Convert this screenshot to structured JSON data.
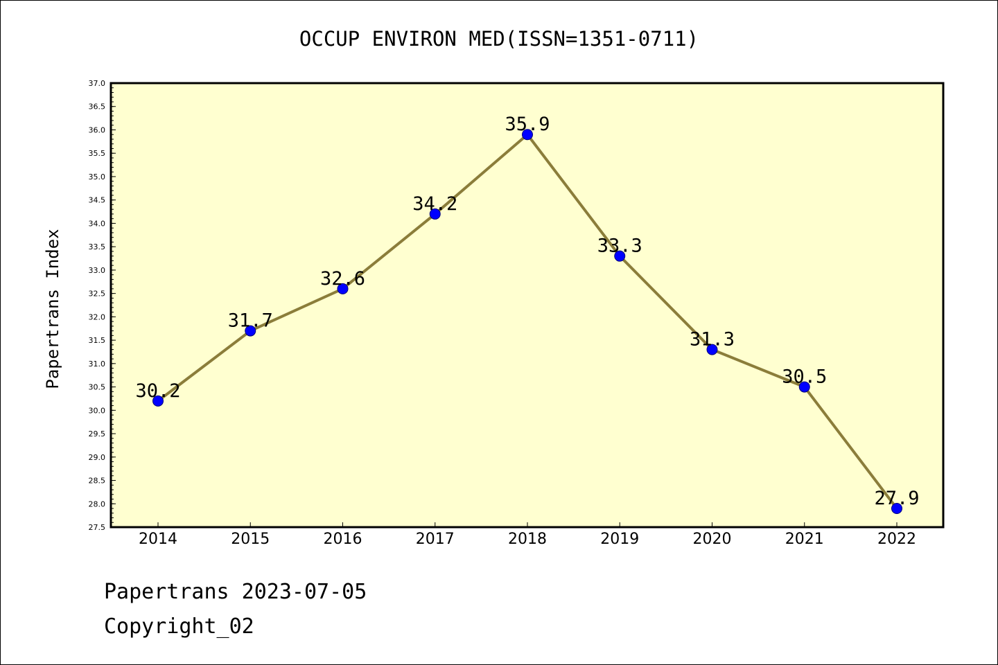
{
  "chart_data": {
    "type": "line",
    "title": "OCCUP ENVIRON MED(ISSN=1351-0711)",
    "xlabel": "",
    "ylabel": "Papertrans Index",
    "categories": [
      "2014",
      "2015",
      "2016",
      "2017",
      "2018",
      "2019",
      "2020",
      "2021",
      "2022"
    ],
    "series": [
      {
        "values": [
          30.2,
          31.7,
          32.6,
          34.2,
          35.9,
          33.3,
          31.3,
          30.5,
          27.9
        ],
        "labels": [
          "30.2",
          "31.7",
          "32.6",
          "34.2",
          "35.9",
          "33.3",
          "31.3",
          "30.5",
          "27.9"
        ]
      }
    ],
    "ylim": [
      27.5,
      37.0
    ],
    "yticks": [
      "27.5",
      "28.0",
      "28.5",
      "29.0",
      "29.5",
      "30.0",
      "30.5",
      "31.0",
      "31.5",
      "32.0",
      "32.5",
      "33.0",
      "33.5",
      "34.0",
      "34.5",
      "35.0",
      "35.5",
      "36.0",
      "36.5",
      "37.0"
    ],
    "grid": false,
    "legend": "none",
    "colors": {
      "plot_background": "#ffffd0",
      "line": "#8b7d3a",
      "marker": "#0000ff"
    }
  },
  "footer": {
    "line1": "Papertrans 2023-07-05",
    "line2": "Copyright_02"
  }
}
